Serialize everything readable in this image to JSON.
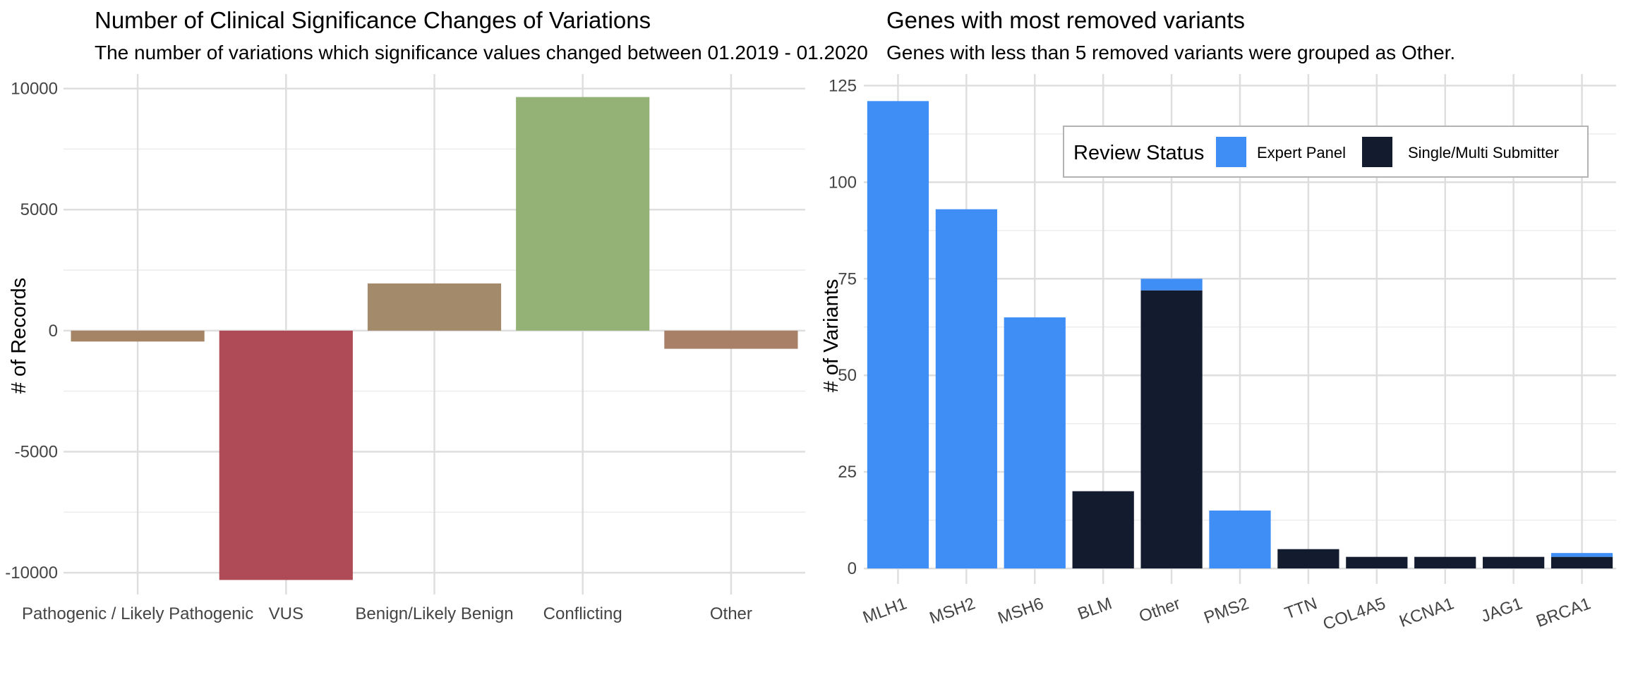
{
  "chart_data": [
    {
      "type": "bar",
      "title": "Number of Clinical Significance Changes of Variations",
      "subtitle": "The number of variations which significance values changed between 01.2019 - 01.2020",
      "xlabel": "",
      "ylabel": "# of Records",
      "categories": [
        "Pathogenic / Likely Pathogenic",
        "VUS",
        "Benign/Likely Benign",
        "Conflicting",
        "Other"
      ],
      "values": [
        -450,
        -10300,
        1950,
        9650,
        -750
      ],
      "colors": [
        "#A58466",
        "#AE4B56",
        "#A38A6A",
        "#95B276",
        "#A87F67"
      ],
      "yticks": [
        -10000,
        -5000,
        0,
        5000,
        10000
      ],
      "ylim": [
        -10900,
        10600
      ],
      "grid": true,
      "legend": "none"
    },
    {
      "type": "bar",
      "stacked": true,
      "title": "Genes with most removed variants",
      "subtitle": "Genes with less than 5 removed variants were grouped as Other.",
      "xlabel": "",
      "ylabel": "# of Variants",
      "categories": [
        "MLH1",
        "MSH2",
        "MSH6",
        "BLM",
        "Other",
        "PMS2",
        "TTN",
        "COL4A5",
        "KCNA1",
        "JAG1",
        "BRCA1"
      ],
      "series": [
        {
          "name": "Single/Multi Submitter",
          "color": "#131B2E",
          "values": [
            0,
            0,
            0,
            20,
            72,
            0,
            5,
            3,
            3,
            3,
            3
          ]
        },
        {
          "name": "Expert Panel",
          "color": "#3E8EF5",
          "values": [
            121,
            93,
            65,
            0,
            3,
            15,
            0,
            0,
            0,
            0,
            1
          ]
        }
      ],
      "yticks": [
        0,
        25,
        50,
        75,
        100,
        125
      ],
      "ylim": [
        -4,
        128
      ],
      "grid": true,
      "legend": {
        "title": "Review Status",
        "placement": "top-right",
        "items": [
          {
            "label": "Expert Panel",
            "color": "#3E8EF5"
          },
          {
            "label": "Single/Multi Submitter",
            "color": "#131B2E"
          }
        ]
      }
    }
  ]
}
